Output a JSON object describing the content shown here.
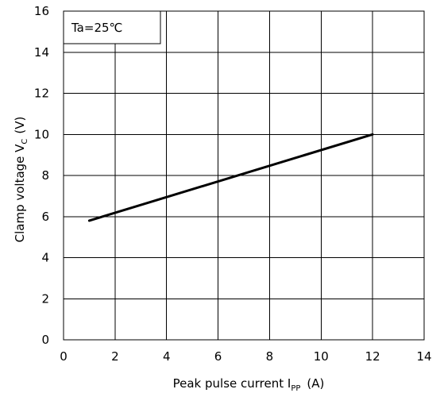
{
  "chart_data": {
    "type": "line",
    "title": "",
    "annotation": "Ta=25℃",
    "xlabel": {
      "main": "Peak pulse current I",
      "sub": "PP",
      "unit": "(A)"
    },
    "ylabel": {
      "main": "Clamp voltage  V",
      "sub": "C",
      "unit": "(V)"
    },
    "xlim": [
      0,
      14
    ],
    "ylim": [
      0,
      16
    ],
    "xticks": [
      0,
      2,
      4,
      6,
      8,
      10,
      12,
      14
    ],
    "yticks": [
      0,
      2,
      4,
      6,
      8,
      10,
      12,
      14,
      16
    ],
    "grid": true,
    "series": [
      {
        "x": [
          1,
          12
        ],
        "y": [
          5.8,
          10.0
        ]
      }
    ]
  }
}
